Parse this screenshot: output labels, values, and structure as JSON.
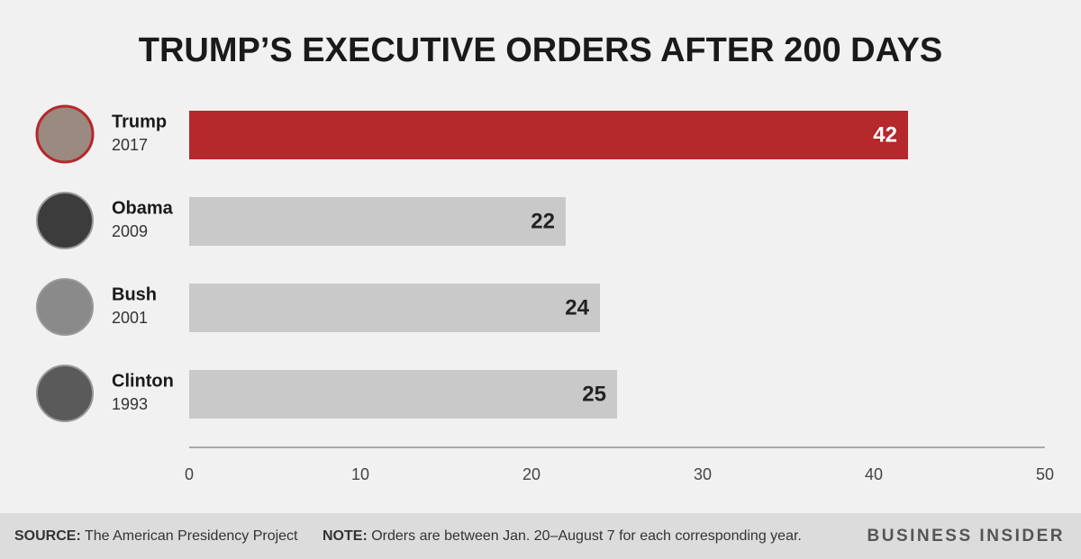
{
  "chart_data": {
    "type": "hbar",
    "title": "TRUMP’S EXECUTIVE ORDERS AFTER 200 DAYS",
    "categories": [
      "Trump",
      "Obama",
      "Bush",
      "Clinton"
    ],
    "years": [
      "2017",
      "2009",
      "2001",
      "1993"
    ],
    "values": [
      42,
      22,
      24,
      25
    ],
    "colors": [
      "#b5282b",
      "#c9c9c9",
      "#c9c9c9",
      "#c9c9c9"
    ],
    "value_label_colors": [
      "#ffffff",
      "#222222",
      "#222222",
      "#222222"
    ],
    "xlim": [
      0,
      50
    ],
    "xticks": [
      0,
      10,
      20,
      30,
      40,
      50
    ],
    "grid": false
  },
  "footer": {
    "source_label": "SOURCE:",
    "source": "The American Presidency Project",
    "note_label": "NOTE:",
    "note": "Orders are between Jan. 20–August 7 for each corresponding year.",
    "brand": "BUSINESS INSIDER"
  }
}
